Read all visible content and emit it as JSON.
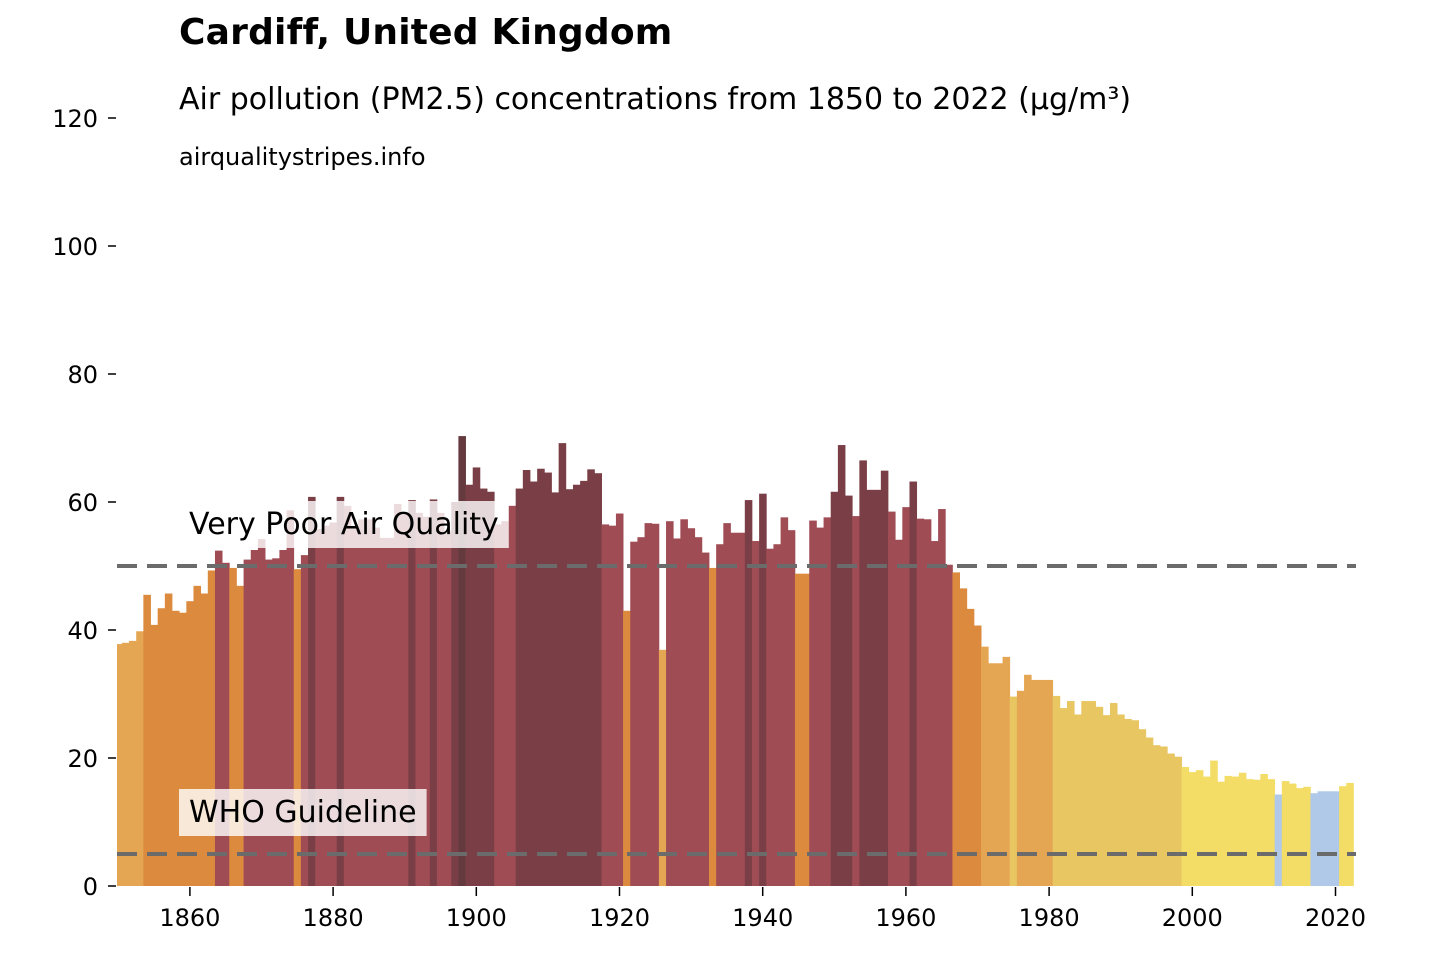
{
  "chart_data": {
    "type": "bar",
    "title": "Cardiff, United Kingdom",
    "subtitle": "Air pollution (PM2.5) concentrations from 1850 to 2022 (µg/m³)",
    "source": "airqualitystripes.info",
    "xlabel": "",
    "ylabel": "",
    "ylim": [
      0,
      120
    ],
    "xlim": [
      1850,
      2022
    ],
    "grid": false,
    "y_ticks": [
      0,
      20,
      40,
      60,
      80,
      100,
      120
    ],
    "x_ticks": [
      1860,
      1880,
      1900,
      1920,
      1940,
      1960,
      1980,
      2000,
      2020
    ],
    "reference_lines": [
      {
        "label": "Very Poor Air Quality",
        "value": 50
      },
      {
        "label": "WHO Guideline",
        "value": 5
      }
    ],
    "color_scale": [
      {
        "min": 70,
        "color": "#643a3f"
      },
      {
        "min": 60,
        "color": "#7a3f46"
      },
      {
        "min": 50,
        "color": "#a04c55"
      },
      {
        "min": 40,
        "color": "#dc8a3e"
      },
      {
        "min": 30,
        "color": "#e5a653"
      },
      {
        "min": 20,
        "color": "#e8c662"
      },
      {
        "min": 15,
        "color": "#f4dd66"
      },
      {
        "min": 10,
        "color": "#b1c9e8"
      },
      {
        "min": 0,
        "color": "#c9dcf0"
      }
    ],
    "x": [
      1850,
      1851,
      1852,
      1853,
      1854,
      1855,
      1856,
      1857,
      1858,
      1859,
      1860,
      1861,
      1862,
      1863,
      1864,
      1865,
      1866,
      1867,
      1868,
      1869,
      1870,
      1871,
      1872,
      1873,
      1874,
      1875,
      1876,
      1877,
      1878,
      1879,
      1880,
      1881,
      1882,
      1883,
      1884,
      1885,
      1886,
      1887,
      1888,
      1889,
      1890,
      1891,
      1892,
      1893,
      1894,
      1895,
      1896,
      1897,
      1898,
      1899,
      1900,
      1901,
      1902,
      1903,
      1904,
      1905,
      1906,
      1907,
      1908,
      1909,
      1910,
      1911,
      1912,
      1913,
      1914,
      1915,
      1916,
      1917,
      1918,
      1919,
      1920,
      1921,
      1922,
      1923,
      1924,
      1925,
      1926,
      1927,
      1928,
      1929,
      1930,
      1931,
      1932,
      1933,
      1934,
      1935,
      1936,
      1937,
      1938,
      1939,
      1940,
      1941,
      1942,
      1943,
      1944,
      1945,
      1946,
      1947,
      1948,
      1949,
      1950,
      1951,
      1952,
      1953,
      1954,
      1955,
      1956,
      1957,
      1958,
      1959,
      1960,
      1961,
      1962,
      1963,
      1964,
      1965,
      1966,
      1967,
      1968,
      1969,
      1970,
      1971,
      1972,
      1973,
      1974,
      1975,
      1976,
      1977,
      1978,
      1979,
      1980,
      1981,
      1982,
      1983,
      1984,
      1985,
      1986,
      1987,
      1988,
      1989,
      1990,
      1991,
      1992,
      1993,
      1994,
      1995,
      1996,
      1997,
      1998,
      1999,
      2000,
      2001,
      2002,
      2003,
      2004,
      2005,
      2006,
      2007,
      2008,
      2009,
      2010,
      2011,
      2012,
      2013,
      2014,
      2015,
      2016,
      2017,
      2018,
      2019,
      2020,
      2021,
      2022
    ],
    "values": [
      37.8,
      38.0,
      38.3,
      39.8,
      45.5,
      40.8,
      43.4,
      45.7,
      43.0,
      42.7,
      44.5,
      46.9,
      45.7,
      49.3,
      52.4,
      50.5,
      49.7,
      46.9,
      51.0,
      52.5,
      54.2,
      51.0,
      51.2,
      52.5,
      58.7,
      49.5,
      51.7,
      60.8,
      55.8,
      56.3,
      56.8,
      60.8,
      59.4,
      56.0,
      57.3,
      57.3,
      56.0,
      54.4,
      54.4,
      59.7,
      58.3,
      60.3,
      58.3,
      57.7,
      60.4,
      58.3,
      55.5,
      60.0,
      70.3,
      62.7,
      65.4,
      62.1,
      61.6,
      56.5,
      57.0,
      59.4,
      62.1,
      65.0,
      63.2,
      65.2,
      64.6,
      61.5,
      69.2,
      62.0,
      62.7,
      63.3,
      65.1,
      64.5,
      56.5,
      56.3,
      58.2,
      43.0,
      53.8,
      54.5,
      56.7,
      56.6,
      36.9,
      57.0,
      54.3,
      57.3,
      55.9,
      54.5,
      52.1,
      49.7,
      53.4,
      56.7,
      55.2,
      55.2,
      60.3,
      53.9,
      61.3,
      52.7,
      53.4,
      57.6,
      55.6,
      48.8,
      48.8,
      57.1,
      56.0,
      57.6,
      61.6,
      68.9,
      61.0,
      57.8,
      66.5,
      61.9,
      61.9,
      64.9,
      58.5,
      54.1,
      59.2,
      63.2,
      57.4,
      57.3,
      53.9,
      58.9,
      50.2,
      49.0,
      46.5,
      43.3,
      40.7,
      37.4,
      34.8,
      34.8,
      35.8,
      29.6,
      30.5,
      33.0,
      32.2,
      32.2,
      32.2,
      29.7,
      27.8,
      28.9,
      26.8,
      28.9,
      28.9,
      28.0,
      26.7,
      28.6,
      26.8,
      26.1,
      25.9,
      24.5,
      23.2,
      22.0,
      21.8,
      20.7,
      20.2,
      18.6,
      17.8,
      18.1,
      17.1,
      19.6,
      16.3,
      17.2,
      17.1,
      17.7,
      16.7,
      16.6,
      17.5,
      16.7,
      14.3,
      16.4,
      16.0,
      15.3,
      15.5,
      14.5,
      14.8,
      14.8,
      14.8,
      15.6,
      16.1
    ]
  }
}
